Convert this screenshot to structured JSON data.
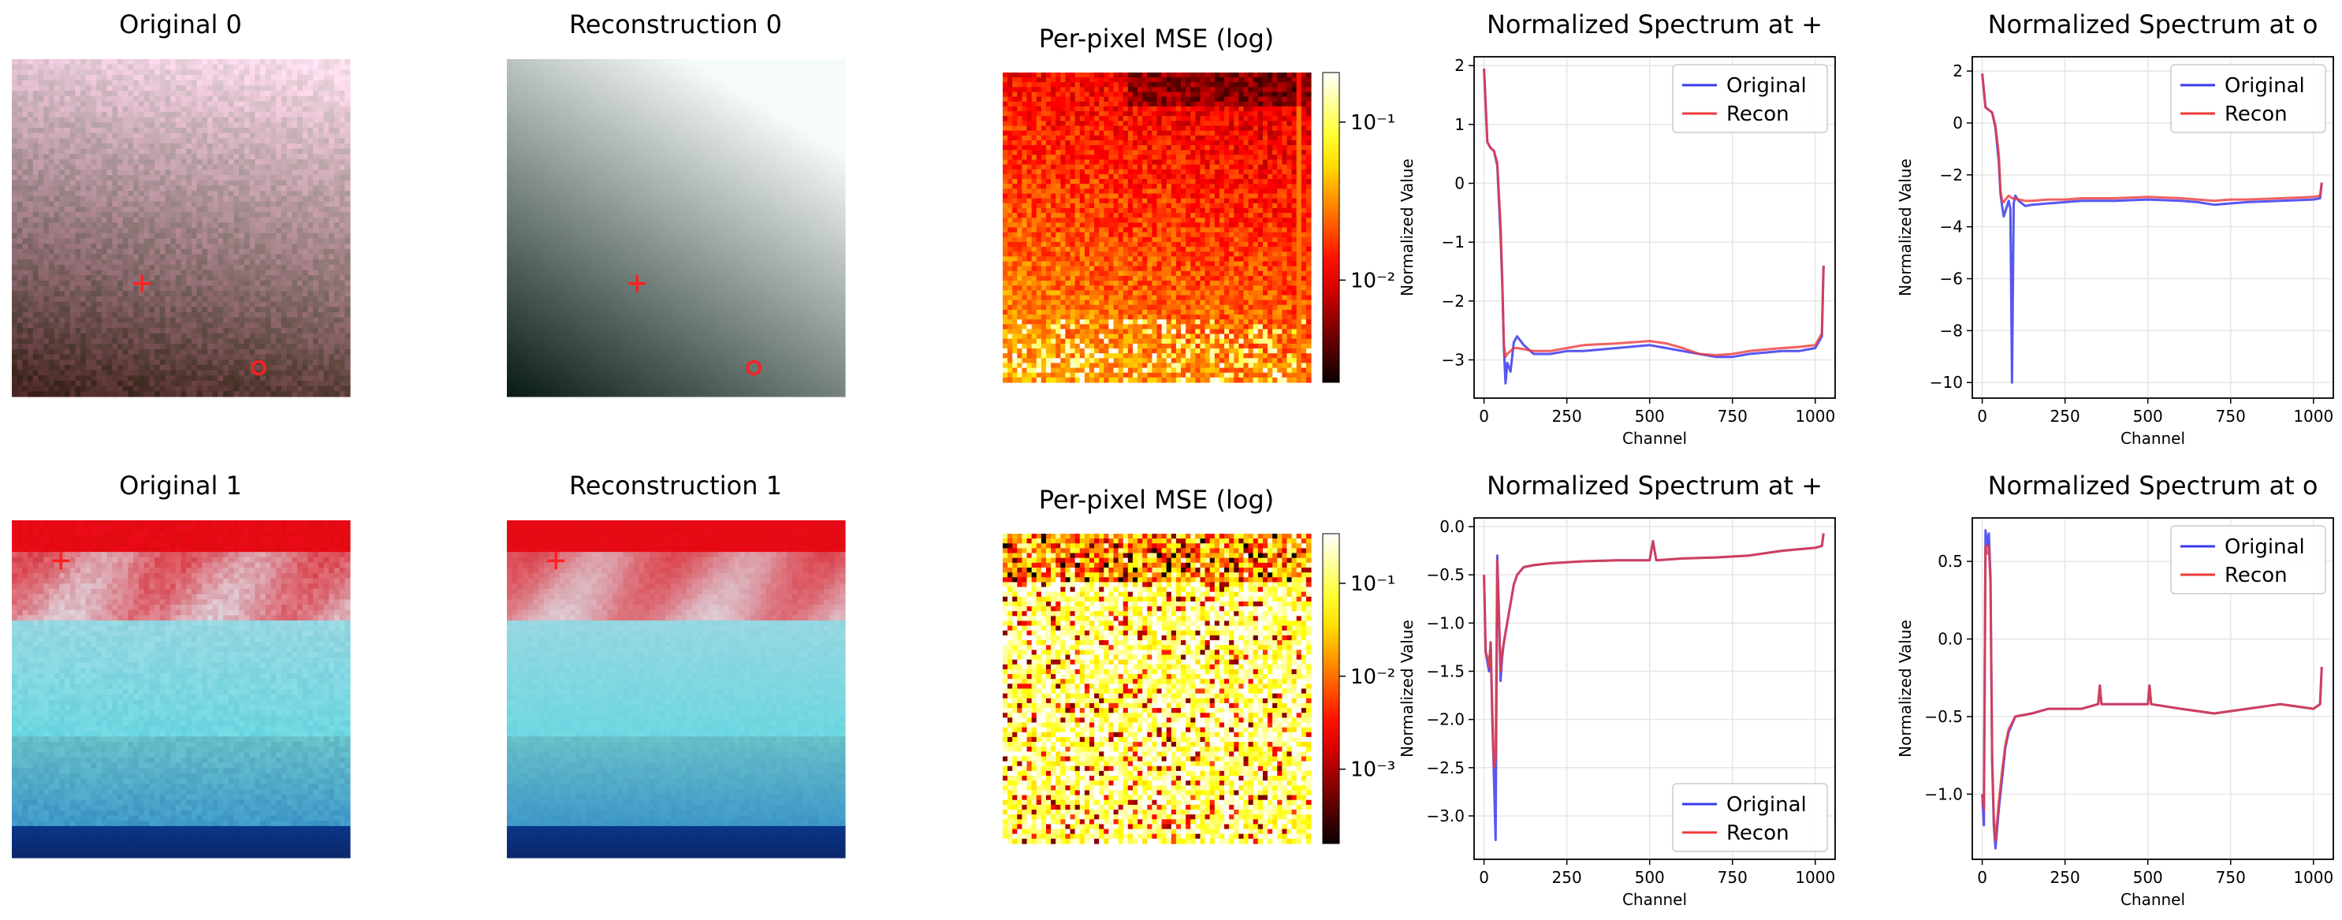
{
  "figure": {
    "images": [
      {
        "title": "Original 0",
        "kind": "hazy",
        "markers": [
          "+",
          "o"
        ]
      },
      {
        "title": "Reconstruction 0",
        "kind": "smooth",
        "markers": [
          "+",
          "o"
        ]
      },
      {
        "title": "Original 1",
        "kind": "cloud",
        "markers": [
          "+"
        ]
      },
      {
        "title": "Reconstruction 1",
        "kind": "cloud",
        "markers": [
          "+"
        ]
      }
    ],
    "mse_maps": [
      {
        "title": "Per-pixel MSE (log)",
        "colormap": "hot",
        "colorbar_ticks": [
          "10⁻¹",
          "10⁻²"
        ]
      },
      {
        "title": "Per-pixel MSE (log)",
        "colormap": "hot",
        "colorbar_ticks": [
          "10⁻¹",
          "10⁻²",
          "10⁻³"
        ]
      }
    ],
    "colors": {
      "original": "#3a3aee",
      "recon": "#ee3a3a",
      "overlap": "#b0124e",
      "grid": "#e6e6e6",
      "marker": "#ff2020"
    }
  },
  "chart_data": [
    {
      "type": "line",
      "title": "Normalized Spectrum at +",
      "xlabel": "Channel",
      "ylabel": "Normalized Value",
      "xlim": [
        -30,
        1060
      ],
      "ylim": [
        -3.65,
        2.15
      ],
      "xticks": [
        0,
        250,
        500,
        750,
        1000
      ],
      "yticks": [
        2,
        1,
        0,
        -1,
        -2,
        -3
      ],
      "legend": {
        "position": "top-right",
        "entries": [
          "Original",
          "Recon"
        ]
      },
      "x": [
        0,
        10,
        20,
        30,
        40,
        50,
        55,
        60,
        65,
        70,
        80,
        90,
        100,
        120,
        150,
        200,
        250,
        300,
        400,
        500,
        550,
        600,
        650,
        700,
        750,
        800,
        900,
        950,
        1000,
        1010,
        1020,
        1025
      ],
      "series": [
        {
          "name": "Original",
          "values": [
            1.95,
            0.7,
            0.6,
            0.55,
            0.3,
            -0.9,
            -1.7,
            -2.8,
            -3.4,
            -3.05,
            -3.2,
            -2.7,
            -2.6,
            -2.75,
            -2.9,
            -2.9,
            -2.85,
            -2.85,
            -2.8,
            -2.75,
            -2.8,
            -2.85,
            -2.9,
            -2.95,
            -2.95,
            -2.9,
            -2.85,
            -2.85,
            -2.8,
            -2.7,
            -2.6,
            -1.4
          ]
        },
        {
          "name": "Recon",
          "values": [
            1.95,
            0.7,
            0.6,
            0.55,
            0.35,
            -0.7,
            -1.6,
            -2.75,
            -2.95,
            -2.9,
            -2.85,
            -2.8,
            -2.8,
            -2.82,
            -2.85,
            -2.85,
            -2.8,
            -2.75,
            -2.72,
            -2.68,
            -2.72,
            -2.8,
            -2.9,
            -2.92,
            -2.9,
            -2.85,
            -2.8,
            -2.78,
            -2.75,
            -2.65,
            -2.55,
            -1.4
          ]
        }
      ]
    },
    {
      "type": "line",
      "title": "Normalized Spectrum at o",
      "xlabel": "Channel",
      "ylabel": "Normalized Value",
      "xlim": [
        -30,
        1060
      ],
      "ylim": [
        -10.6,
        2.55
      ],
      "xticks": [
        0,
        250,
        500,
        750,
        1000
      ],
      "yticks": [
        2,
        0,
        -2,
        -4,
        -6,
        -8,
        -10
      ],
      "legend": {
        "position": "top-right",
        "entries": [
          "Original",
          "Recon"
        ]
      },
      "x": [
        0,
        10,
        20,
        30,
        40,
        50,
        55,
        60,
        65,
        70,
        80,
        85,
        90,
        95,
        100,
        110,
        130,
        150,
        200,
        250,
        300,
        400,
        500,
        600,
        650,
        700,
        750,
        800,
        900,
        1000,
        1020,
        1025
      ],
      "series": [
        {
          "name": "Original",
          "values": [
            1.9,
            0.6,
            0.5,
            0.4,
            -0.2,
            -1.5,
            -2.7,
            -3.2,
            -3.6,
            -3.4,
            -3.0,
            -3.3,
            -10.0,
            -3.1,
            -2.8,
            -3.0,
            -3.2,
            -3.15,
            -3.1,
            -3.05,
            -3.0,
            -3.0,
            -2.95,
            -3.0,
            -3.05,
            -3.15,
            -3.1,
            -3.05,
            -3.0,
            -2.95,
            -2.9,
            -2.3
          ]
        },
        {
          "name": "Recon",
          "values": [
            1.9,
            0.6,
            0.5,
            0.4,
            -0.1,
            -1.2,
            -2.6,
            -3.0,
            -3.05,
            -2.95,
            -2.8,
            -2.85,
            -2.9,
            -2.9,
            -2.9,
            -2.95,
            -3.0,
            -3.0,
            -2.95,
            -2.95,
            -2.9,
            -2.9,
            -2.85,
            -2.9,
            -2.95,
            -3.0,
            -2.95,
            -2.95,
            -2.9,
            -2.85,
            -2.8,
            -2.3
          ]
        }
      ]
    },
    {
      "type": "line",
      "title": "Normalized Spectrum at +",
      "xlabel": "Channel",
      "ylabel": "Normalized Value",
      "xlim": [
        -30,
        1060
      ],
      "ylim": [
        -3.45,
        0.09
      ],
      "xticks": [
        0,
        250,
        500,
        750,
        1000
      ],
      "yticks": [
        0.0,
        -0.5,
        -1.0,
        -1.5,
        -2.0,
        -2.5,
        -3.0
      ],
      "legend": {
        "position": "bottom-right",
        "entries": [
          "Original",
          "Recon"
        ]
      },
      "x": [
        0,
        5,
        10,
        15,
        20,
        25,
        30,
        35,
        40,
        45,
        50,
        55,
        60,
        70,
        80,
        90,
        100,
        120,
        150,
        200,
        300,
        400,
        500,
        510,
        520,
        600,
        700,
        800,
        900,
        1000,
        1020,
        1025
      ],
      "series": [
        {
          "name": "Original",
          "values": [
            -0.5,
            -1.3,
            -1.4,
            -1.5,
            -1.2,
            -2.0,
            -2.6,
            -3.25,
            -0.3,
            -0.9,
            -1.6,
            -1.35,
            -1.2,
            -1.0,
            -0.8,
            -0.6,
            -0.5,
            -0.42,
            -0.4,
            -0.38,
            -0.36,
            -0.35,
            -0.35,
            -0.15,
            -0.35,
            -0.33,
            -0.32,
            -0.3,
            -0.25,
            -0.22,
            -0.2,
            -0.07
          ]
        },
        {
          "name": "Recon",
          "values": [
            -0.5,
            -1.3,
            -1.35,
            -1.45,
            -1.2,
            -1.9,
            -2.5,
            -2.4,
            -0.35,
            -0.9,
            -1.5,
            -1.3,
            -1.2,
            -1.0,
            -0.8,
            -0.6,
            -0.5,
            -0.42,
            -0.4,
            -0.38,
            -0.36,
            -0.35,
            -0.35,
            -0.15,
            -0.35,
            -0.33,
            -0.32,
            -0.3,
            -0.25,
            -0.22,
            -0.2,
            -0.07
          ]
        }
      ]
    },
    {
      "type": "line",
      "title": "Normalized Spectrum at o",
      "xlabel": "Channel",
      "ylabel": "Normalized Value",
      "xlim": [
        -30,
        1060
      ],
      "ylim": [
        -1.42,
        0.78
      ],
      "xticks": [
        0,
        250,
        500,
        750,
        1000
      ],
      "yticks": [
        0.5,
        0.0,
        -0.5,
        -1.0
      ],
      "legend": {
        "position": "top-right",
        "entries": [
          "Original",
          "Recon"
        ]
      },
      "x": [
        0,
        5,
        10,
        15,
        20,
        25,
        30,
        35,
        40,
        50,
        60,
        70,
        80,
        100,
        150,
        200,
        300,
        350,
        355,
        360,
        400,
        500,
        505,
        510,
        600,
        700,
        800,
        900,
        1000,
        1020,
        1025
      ],
      "series": [
        {
          "name": "Original",
          "values": [
            -1.0,
            -1.2,
            0.7,
            0.6,
            0.68,
            0.4,
            -0.8,
            -1.2,
            -1.35,
            -1.1,
            -0.9,
            -0.7,
            -0.6,
            -0.5,
            -0.48,
            -0.45,
            -0.45,
            -0.42,
            -0.3,
            -0.42,
            -0.42,
            -0.42,
            -0.3,
            -0.42,
            -0.45,
            -0.48,
            -0.45,
            -0.42,
            -0.45,
            -0.42,
            -0.18
          ]
        },
        {
          "name": "Recon",
          "values": [
            -1.0,
            -1.1,
            0.6,
            0.55,
            0.6,
            0.35,
            -0.75,
            -1.15,
            -1.3,
            -1.05,
            -0.85,
            -0.68,
            -0.58,
            -0.5,
            -0.48,
            -0.45,
            -0.45,
            -0.42,
            -0.3,
            -0.42,
            -0.42,
            -0.42,
            -0.3,
            -0.42,
            -0.45,
            -0.48,
            -0.45,
            -0.42,
            -0.45,
            -0.42,
            -0.18
          ]
        }
      ]
    }
  ]
}
